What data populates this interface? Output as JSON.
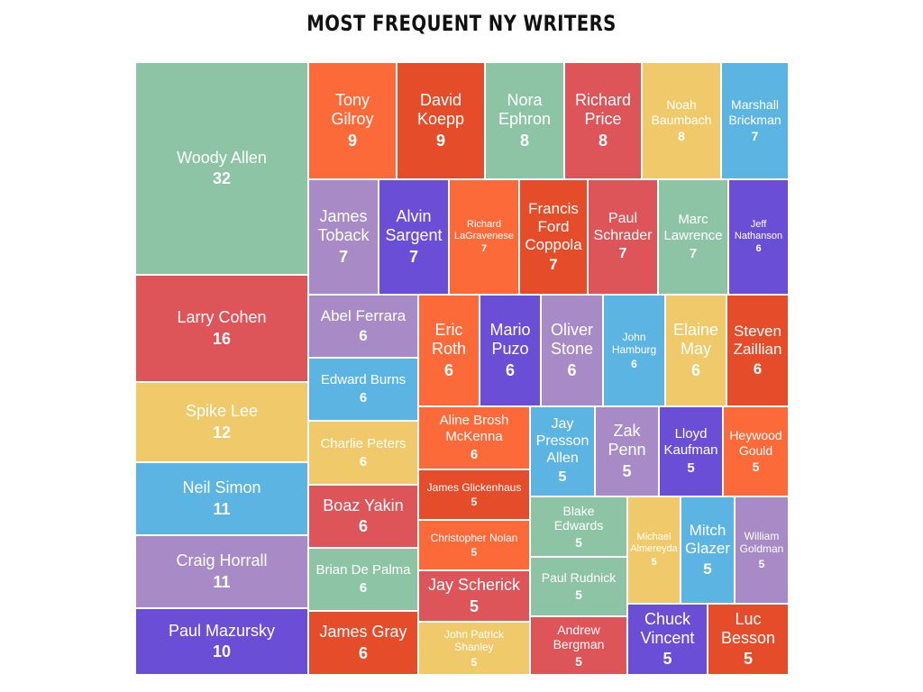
{
  "colors": {
    "green": "#8cc4a5",
    "red": "#dd5459",
    "yellow": "#f0c96a",
    "blue": "#5cb4e2",
    "lavender": "#a88bc6",
    "purple": "#6a4fd6",
    "orange": "#fd6a3a",
    "darkorange": "#e54d2a"
  },
  "chart_data": {
    "type": "treemap",
    "title": "MOST FREQUENT NY WRITERS",
    "items": [
      {
        "name": "Woody Allen",
        "value": 32,
        "color": "green"
      },
      {
        "name": "Larry Cohen",
        "value": 16,
        "color": "red"
      },
      {
        "name": "Spike Lee",
        "value": 12,
        "color": "yellow"
      },
      {
        "name": "Neil Simon",
        "value": 11,
        "color": "blue"
      },
      {
        "name": "Craig Horrall",
        "value": 11,
        "color": "lavender"
      },
      {
        "name": "Paul Mazursky",
        "value": 10,
        "color": "purple"
      },
      {
        "name": "Tony Gilroy",
        "value": 9,
        "color": "orange"
      },
      {
        "name": "David Koepp",
        "value": 9,
        "color": "darkorange"
      },
      {
        "name": "Nora Ephron",
        "value": 8,
        "color": "green"
      },
      {
        "name": "Richard Price",
        "value": 8,
        "color": "red"
      },
      {
        "name": "Noah Baumbach",
        "value": 8,
        "color": "yellow"
      },
      {
        "name": "Marshall Brickman",
        "value": 7,
        "color": "blue"
      },
      {
        "name": "James Toback",
        "value": 7,
        "color": "lavender"
      },
      {
        "name": "Alvin Sargent",
        "value": 7,
        "color": "purple"
      },
      {
        "name": "Richard LaGravenese",
        "value": 7,
        "color": "orange"
      },
      {
        "name": "Francis Ford Coppola",
        "value": 7,
        "color": "darkorange"
      },
      {
        "name": "Paul Schrader",
        "value": 7,
        "color": "red"
      },
      {
        "name": "Marc Lawrence",
        "value": 7,
        "color": "green"
      },
      {
        "name": "Jeff Nathanson",
        "value": 6,
        "color": "purple"
      },
      {
        "name": "Abel Ferrara",
        "value": 6,
        "color": "lavender"
      },
      {
        "name": "Edward Burns",
        "value": 6,
        "color": "blue"
      },
      {
        "name": "Charlie Peters",
        "value": 6,
        "color": "yellow"
      },
      {
        "name": "Boaz Yakin",
        "value": 6,
        "color": "red"
      },
      {
        "name": "Brian De Palma",
        "value": 6,
        "color": "green"
      },
      {
        "name": "James Gray",
        "value": 6,
        "color": "darkorange"
      },
      {
        "name": "Eric Roth",
        "value": 6,
        "color": "orange"
      },
      {
        "name": "Mario Puzo",
        "value": 6,
        "color": "purple"
      },
      {
        "name": "Oliver Stone",
        "value": 6,
        "color": "lavender"
      },
      {
        "name": "John Hamburg",
        "value": 6,
        "color": "blue"
      },
      {
        "name": "Elaine May",
        "value": 6,
        "color": "yellow"
      },
      {
        "name": "Steven Zaillian",
        "value": 6,
        "color": "darkorange"
      },
      {
        "name": "Aline Brosh McKenna",
        "value": 6,
        "color": "orange"
      },
      {
        "name": "James Glickenhaus",
        "value": 5,
        "color": "darkorange"
      },
      {
        "name": "Christopher Nolan",
        "value": 5,
        "color": "orange"
      },
      {
        "name": "Jay Scherick",
        "value": 5,
        "color": "red"
      },
      {
        "name": "John Patrick Shanley",
        "value": 5,
        "color": "yellow"
      },
      {
        "name": "Jay Presson Allen",
        "value": 5,
        "color": "blue"
      },
      {
        "name": "Zak Penn",
        "value": 5,
        "color": "lavender"
      },
      {
        "name": "Lloyd Kaufman",
        "value": 5,
        "color": "purple"
      },
      {
        "name": "Heywood Gould",
        "value": 5,
        "color": "orange"
      },
      {
        "name": "Blake Edwards",
        "value": 5,
        "color": "green"
      },
      {
        "name": "Paul Rudnick",
        "value": 5,
        "color": "green"
      },
      {
        "name": "Andrew Bergman",
        "value": 5,
        "color": "red"
      },
      {
        "name": "Michael Almereyda",
        "value": 5,
        "color": "yellow"
      },
      {
        "name": "Mitch Glazer",
        "value": 5,
        "color": "blue"
      },
      {
        "name": "William Goldman",
        "value": 5,
        "color": "lavender"
      },
      {
        "name": "Chuck Vincent",
        "value": 5,
        "color": "purple"
      },
      {
        "name": "Luc Besson",
        "value": 5,
        "color": "darkorange"
      }
    ]
  }
}
